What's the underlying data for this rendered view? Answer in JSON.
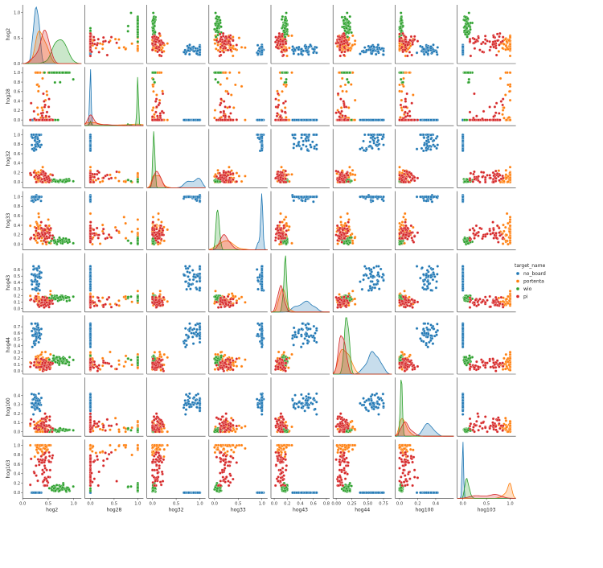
{
  "chart_data": {
    "type": "scatter",
    "layout": "pairplot",
    "variables": [
      "hog2",
      "hog28",
      "hog32",
      "hog33",
      "hog43",
      "hog44",
      "hog100",
      "hog103"
    ],
    "legend": {
      "title": "target_name",
      "position": "right",
      "entries": [
        {
          "name": "no_board",
          "color": "#1f77b4"
        },
        {
          "name": "portenta",
          "color": "#ff7f0e"
        },
        {
          "name": "wio",
          "color": "#2ca02c"
        },
        {
          "name": "pi",
          "color": "#d62728"
        }
      ]
    },
    "axes": {
      "hog2": {
        "lim": [
          0,
          1.15
        ],
        "ticks": [
          "0.0",
          "0.5",
          "1.0"
        ],
        "tick_values": [
          0,
          0.5,
          1.0
        ]
      },
      "hog28": {
        "lim": [
          -0.12,
          1.12
        ],
        "ticks": [
          "0.0",
          "0.2",
          "0.4",
          "0.6",
          "0.8",
          "1.0"
        ],
        "tick_values": [
          0,
          0.2,
          0.4,
          0.6,
          0.8,
          1.0
        ],
        "x_ticks": [
          "0.0",
          "0.5",
          "1.0"
        ],
        "x_tick_values": [
          0,
          0.5,
          1.0
        ]
      },
      "hog32": {
        "lim": [
          -0.12,
          1.12
        ],
        "ticks": [
          "0.0",
          "0.2",
          "0.4",
          "0.6",
          "0.8",
          "1.0"
        ],
        "tick_values": [
          0,
          0.2,
          0.4,
          0.6,
          0.8,
          1.0
        ],
        "x_ticks": [
          "0.0",
          "0.5",
          "1.0"
        ],
        "x_tick_values": [
          0,
          0.5,
          1.0
        ]
      },
      "hog33": {
        "lim": [
          -0.12,
          1.12
        ],
        "ticks": [
          "0.0",
          "0.2",
          "0.4",
          "0.6",
          "0.8",
          "1.0"
        ],
        "tick_values": [
          0,
          0.2,
          0.4,
          0.6,
          0.8,
          1.0
        ],
        "x_ticks": [
          "0.0",
          "0.5",
          "1.0"
        ],
        "x_tick_values": [
          0,
          0.5,
          1.0
        ]
      },
      "hog43": {
        "lim": [
          -0.05,
          0.85
        ],
        "ticks": [
          "0.0",
          "0.1",
          "0.2",
          "0.3",
          "0.4",
          "0.5",
          "0.6"
        ],
        "tick_values": [
          0,
          0.1,
          0.2,
          0.3,
          0.4,
          0.5,
          0.6
        ],
        "x_ticks": [
          "0.0",
          "0.2",
          "0.4",
          "0.6",
          "0.8"
        ],
        "x_tick_values": [
          0,
          0.2,
          0.4,
          0.6,
          0.8
        ]
      },
      "hog44": {
        "lim": [
          -0.05,
          0.88
        ],
        "ticks": [
          "0.0",
          "0.1",
          "0.2",
          "0.3",
          "0.4",
          "0.5",
          "0.6",
          "0.7"
        ],
        "tick_values": [
          0,
          0.1,
          0.2,
          0.3,
          0.4,
          0.5,
          0.6,
          0.7
        ],
        "x_ticks": [
          "0.00",
          "0.25",
          "0.50",
          "0.75"
        ],
        "x_tick_values": [
          0,
          0.25,
          0.5,
          0.75
        ]
      },
      "hog100": {
        "lim": [
          -0.05,
          0.6
        ],
        "ticks": [
          "0.0",
          "0.1",
          "0.2",
          "0.3",
          "0.4"
        ],
        "tick_values": [
          0,
          0.1,
          0.2,
          0.3,
          0.4
        ],
        "x_ticks": [
          "0.0",
          "0.2",
          "0.4"
        ],
        "x_tick_values": [
          0,
          0.2,
          0.4
        ]
      },
      "hog103": {
        "lim": [
          -0.12,
          1.12
        ],
        "ticks": [
          "0.0",
          "0.2",
          "0.4",
          "0.6",
          "0.8",
          "1.0"
        ],
        "tick_values": [
          0,
          0.2,
          0.4,
          0.6,
          0.8,
          1.0
        ],
        "x_ticks": [
          "0.0",
          "0.5",
          "1.0"
        ],
        "x_tick_values": [
          0,
          0.5,
          1.0
        ]
      }
    },
    "class_profiles": {
      "no_board": {
        "hog2": {
          "mean": 0.26,
          "sd": 0.05,
          "lo": 0.15,
          "hi": 0.45
        },
        "hog28": {
          "mean": 0.0,
          "sd": 0.0,
          "lo": 0.0,
          "hi": 0.0
        },
        "hog32": {
          "mean": 0.85,
          "sd": 0.12,
          "lo": 0.55,
          "hi": 1.0
        },
        "hog33": {
          "mean": 0.97,
          "sd": 0.04,
          "lo": 0.85,
          "hi": 1.0
        },
        "hog43": {
          "mean": 0.47,
          "sd": 0.09,
          "lo": 0.28,
          "hi": 0.65
        },
        "hog44": {
          "mean": 0.58,
          "sd": 0.08,
          "lo": 0.38,
          "hi": 0.75
        },
        "hog100": {
          "mean": 0.32,
          "sd": 0.05,
          "lo": 0.18,
          "hi": 0.44
        },
        "hog103": {
          "mean": 0.0,
          "sd": 0.0,
          "lo": 0.0,
          "hi": 0.0
        }
      },
      "portenta": {
        "hog2": {
          "mean": 0.35,
          "sd": 0.1,
          "lo": 0.15,
          "hi": 0.65
        },
        "hog28": {
          "mean": 0.15,
          "sd": 0.3,
          "lo": 0.0,
          "hi": 1.0
        },
        "hog32": {
          "mean": 0.1,
          "sd": 0.08,
          "lo": 0.0,
          "hi": 0.35
        },
        "hog33": {
          "mean": 0.25,
          "sd": 0.15,
          "lo": 0.0,
          "hi": 1.0
        },
        "hog43": {
          "mean": 0.13,
          "sd": 0.05,
          "lo": 0.02,
          "hi": 0.3
        },
        "hog44": {
          "mean": 0.12,
          "sd": 0.07,
          "lo": 0.0,
          "hi": 0.3
        },
        "hog100": {
          "mean": 0.05,
          "sd": 0.04,
          "lo": 0.0,
          "hi": 0.15
        },
        "hog103": {
          "mean": 0.95,
          "sd": 0.08,
          "lo": 0.6,
          "hi": 1.0
        }
      },
      "wio": {
        "hog2": {
          "mean": 0.72,
          "sd": 0.12,
          "lo": 0.4,
          "hi": 1.05
        },
        "hog28": {
          "mean": 1.0,
          "sd": 0.0,
          "lo": 0.0,
          "hi": 1.0
        },
        "hog32": {
          "mean": 0.03,
          "sd": 0.015,
          "lo": 0.0,
          "hi": 0.08
        },
        "hog33": {
          "mean": 0.06,
          "sd": 0.03,
          "lo": 0.0,
          "hi": 0.15
        },
        "hog43": {
          "mean": 0.17,
          "sd": 0.02,
          "lo": 0.1,
          "hi": 0.22
        },
        "hog44": {
          "mean": 0.17,
          "sd": 0.03,
          "lo": 0.08,
          "hi": 0.25
        },
        "hog100": {
          "mean": 0.02,
          "sd": 0.01,
          "lo": 0.0,
          "hi": 0.05
        },
        "hog103": {
          "mean": 0.09,
          "sd": 0.04,
          "lo": 0.0,
          "hi": 0.2
        }
      },
      "pi": {
        "hog2": {
          "mean": 0.4,
          "sd": 0.1,
          "lo": 0.15,
          "hi": 0.65
        },
        "hog28": {
          "mean": 0.12,
          "sd": 0.12,
          "lo": 0.0,
          "hi": 0.6
        },
        "hog32": {
          "mean": 0.1,
          "sd": 0.06,
          "lo": 0.0,
          "hi": 0.3
        },
        "hog33": {
          "mean": 0.18,
          "sd": 0.1,
          "lo": 0.0,
          "hi": 0.5
        },
        "hog43": {
          "mean": 0.1,
          "sd": 0.04,
          "lo": 0.02,
          "hi": 0.22
        },
        "hog44": {
          "mean": 0.1,
          "sd": 0.05,
          "lo": 0.0,
          "hi": 0.25
        },
        "hog100": {
          "mean": 0.06,
          "sd": 0.05,
          "lo": 0.0,
          "hi": 0.44
        },
        "hog103": {
          "mean": 0.5,
          "sd": 0.18,
          "lo": 0.15,
          "hi": 0.85
        }
      }
    },
    "points_per_class": 50,
    "grid": false
  }
}
